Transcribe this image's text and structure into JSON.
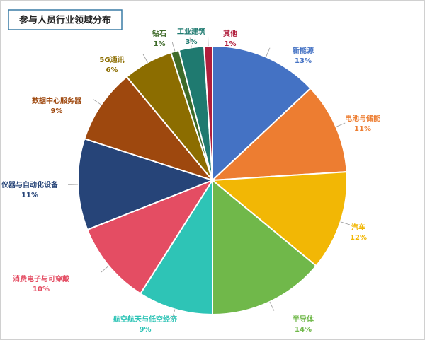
{
  "chart_data": {
    "type": "pie",
    "title": "参与人员行业领域分布",
    "categories": [
      "新能源",
      "电池与储能",
      "汽车",
      "半导体",
      "航空航天与低空经济",
      "消费电子与可穿戴",
      "仪器与自动化设备",
      "数据中心服务器",
      "5G通讯",
      "钻石",
      "工业建筑",
      "其他"
    ],
    "values": [
      13,
      11,
      12,
      14,
      9,
      10,
      11,
      9,
      6,
      1,
      3,
      1
    ],
    "value_labels": [
      "13%",
      "11%",
      "12%",
      "14%",
      "9%",
      "10%",
      "11%",
      "9%",
      "6%",
      "1%",
      "3%",
      "1%"
    ],
    "colors": [
      "#4472c4",
      "#ed7d31",
      "#f2b705",
      "#70b84a",
      "#2ec4b6",
      "#e44d63",
      "#264478",
      "#9e480e",
      "#8c6d00",
      "#3f6b2a",
      "#1f7a70",
      "#b01e3c"
    ]
  }
}
